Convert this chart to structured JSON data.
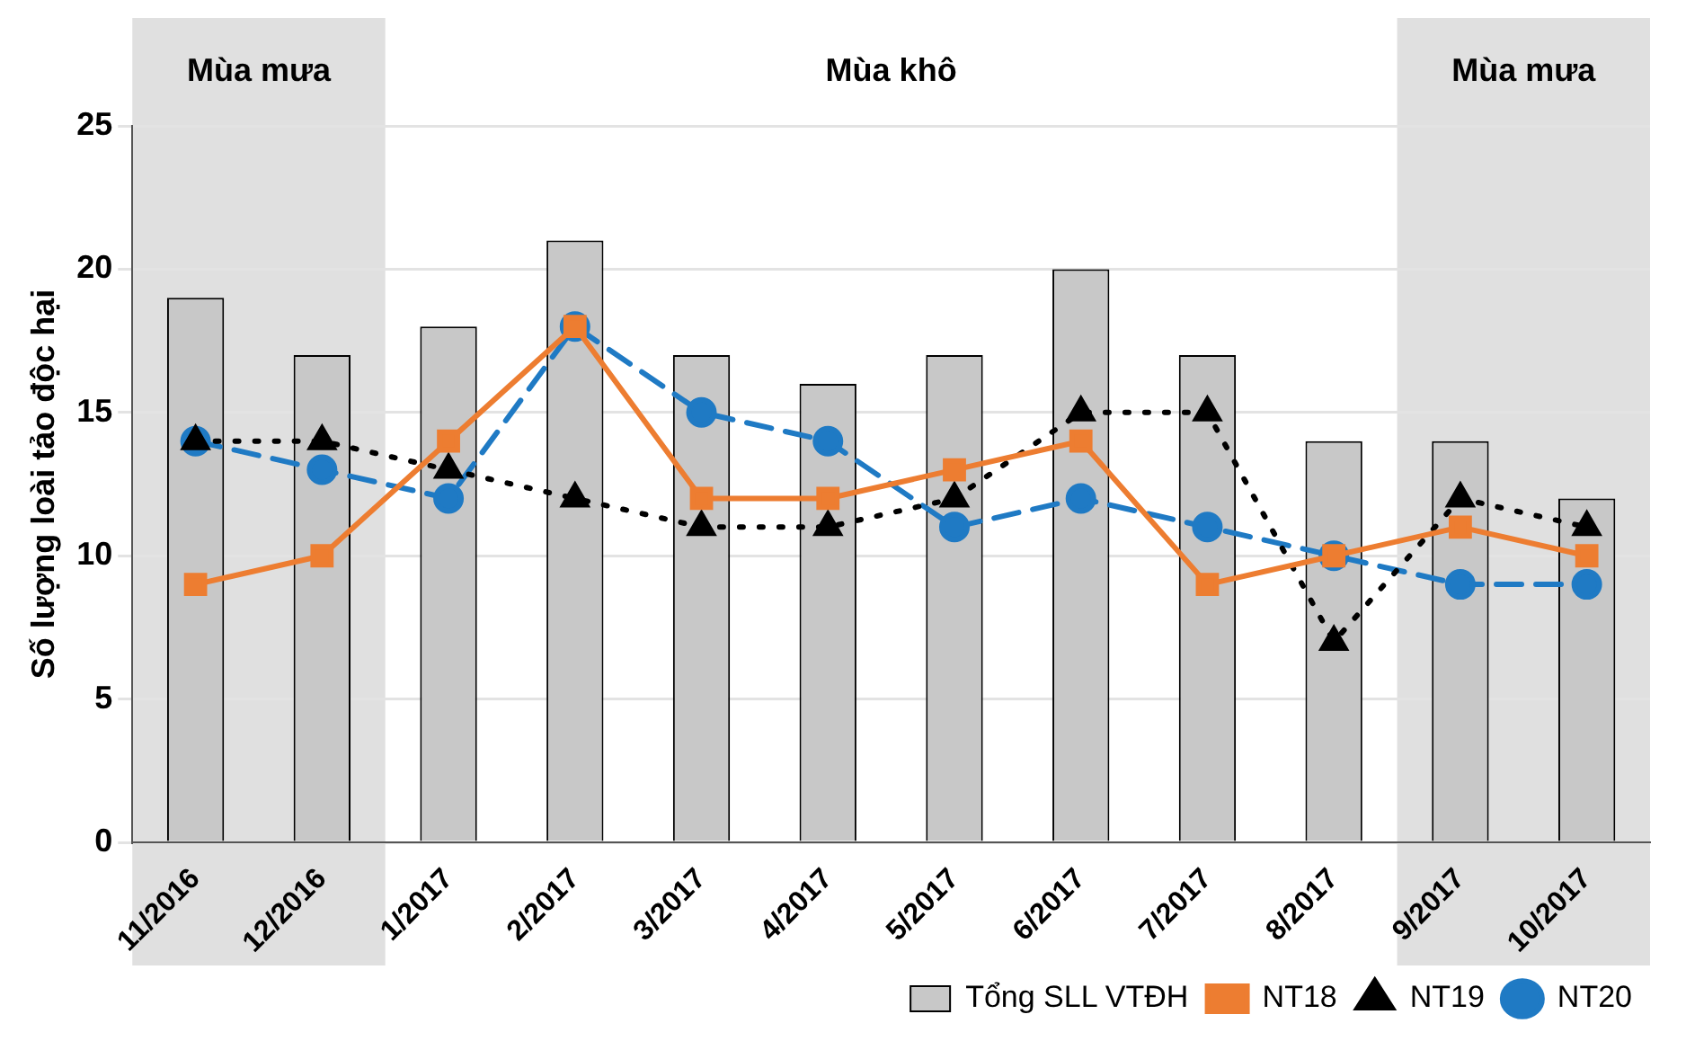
{
  "chart_data": {
    "type": "bar",
    "ylabel": "Số lượng loài tảo độc hại",
    "categories": [
      "11/2016",
      "12/2016",
      "1/2017",
      "2/2017",
      "3/2017",
      "4/2017",
      "5/2017",
      "6/2017",
      "7/2017",
      "8/2017",
      "9/2017",
      "10/2017"
    ],
    "series": [
      {
        "name": "Tổng SLL VTĐH",
        "color": "#c8c8c8",
        "values": [
          19,
          17,
          18,
          21,
          17,
          16,
          17,
          20,
          17,
          14,
          14,
          12
        ]
      },
      {
        "name": "NT18",
        "type": "line",
        "color": "#ed7d31",
        "marker": "square",
        "line_style": "solid",
        "values": [
          9,
          10,
          14,
          18,
          12,
          12,
          13,
          14,
          9,
          10,
          11,
          10
        ]
      },
      {
        "name": "NT19",
        "type": "line",
        "color": "#000000",
        "marker": "triangle",
        "line_style": "dotted",
        "values": [
          14,
          14,
          13,
          12,
          11,
          11,
          12,
          15,
          15,
          7,
          12,
          11
        ]
      },
      {
        "name": "NT20",
        "type": "line",
        "color": "#1f7ac4",
        "marker": "circle",
        "line_style": "dashed",
        "values": [
          14,
          13,
          12,
          18,
          15,
          14,
          11,
          12,
          11,
          10,
          9,
          9
        ]
      }
    ],
    "ylim": [
      0,
      25
    ],
    "yticks": [
      0,
      5,
      10,
      15,
      20,
      25
    ],
    "grid": "y",
    "legend": "bottom",
    "bands": [
      {
        "axis": "x",
        "from": "11/2016",
        "to": "12/2016",
        "label": "Mùa mưa",
        "color": "#e0e0e0"
      },
      {
        "axis": "x",
        "from": "9/2017",
        "to": "10/2017",
        "label": "Mùa mưa",
        "color": "#e0e0e0"
      }
    ],
    "annotations": [
      "Mùa khô"
    ]
  }
}
